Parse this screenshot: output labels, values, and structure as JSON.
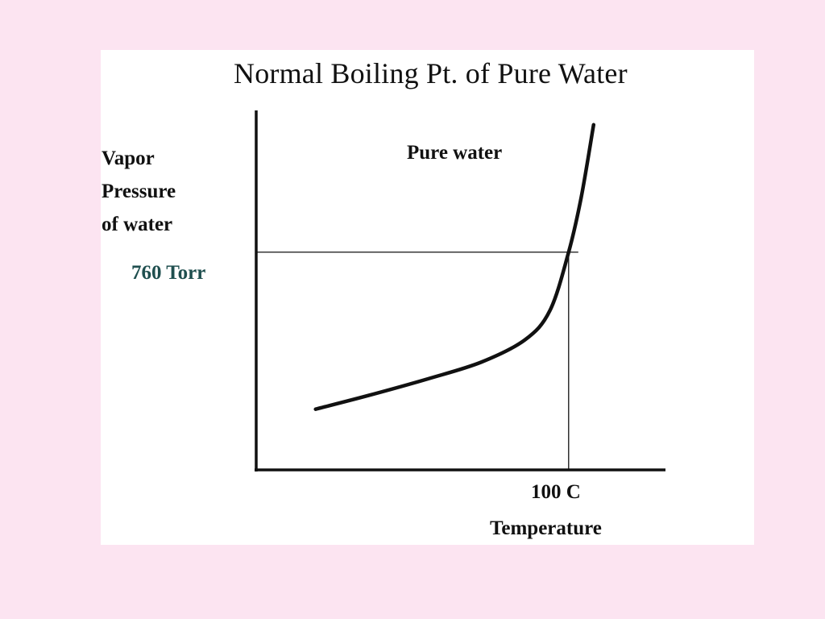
{
  "chart_data": {
    "type": "line",
    "title": "Normal Boiling Pt. of Pure Water",
    "ylabel_lines": [
      "Vapor",
      "Pressure",
      "of water"
    ],
    "xlabel": "Temperature",
    "series": [
      {
        "name": "Pure water",
        "color": "#111111",
        "points": [
          {
            "x": 19,
            "y": 212
          },
          {
            "x": 36,
            "y": 260
          },
          {
            "x": 55,
            "y": 318
          },
          {
            "x": 72,
            "y": 376
          },
          {
            "x": 86,
            "y": 454
          },
          {
            "x": 94,
            "y": 556
          },
          {
            "x": 100,
            "y": 760
          },
          {
            "x": 104,
            "y": 950
          },
          {
            "x": 108,
            "y": 1205
          }
        ]
      }
    ],
    "reference": {
      "x": 100,
      "y": 760,
      "x_label": "100 C",
      "y_label": "760 Torr",
      "y_label_color": "#1f4f4f"
    },
    "xlim": [
      0,
      131
    ],
    "ylim": [
      0,
      1255
    ],
    "grid": false,
    "legend": "none"
  }
}
